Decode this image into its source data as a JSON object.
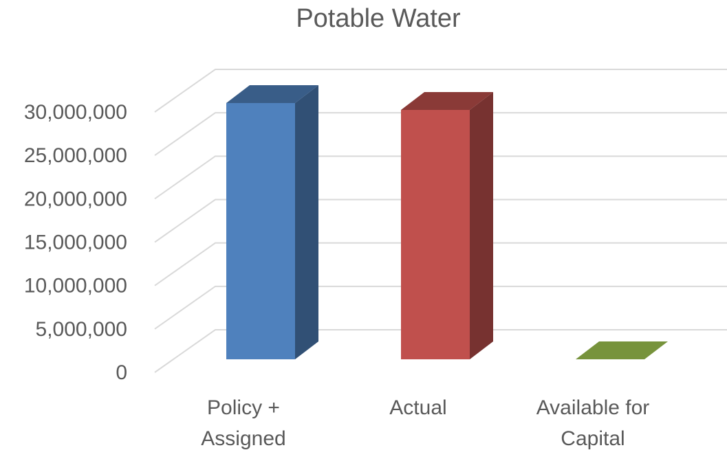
{
  "chart_data": {
    "type": "bar",
    "title": "Potable Water",
    "categories": [
      [
        "Policy +",
        "Assigned"
      ],
      [
        "Actual"
      ],
      [
        "Available for",
        "Capital"
      ]
    ],
    "values": [
      30000000,
      29200000,
      0
    ],
    "colors": [
      "#4f81bd",
      "#c0504d",
      "#77933c"
    ],
    "ylim": [
      0,
      30000000
    ],
    "yticks": [
      "0",
      "5,000,000",
      "10,000,000",
      "15,000,000",
      "20,000,000",
      "25,000,000",
      "30,000,000"
    ],
    "xlabel": "",
    "ylabel": "",
    "grid": true,
    "style": "3d-column"
  }
}
